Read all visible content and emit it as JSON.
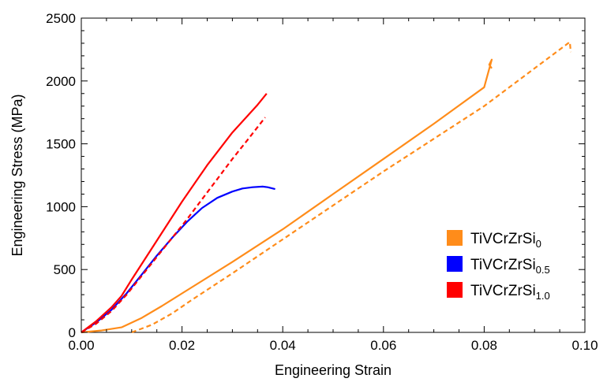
{
  "chart_data": {
    "type": "line",
    "xlabel": "Engineering Strain",
    "ylabel": "Engineering Stress (MPa)",
    "xlim": [
      0,
      0.1
    ],
    "ylim": [
      0,
      2500
    ],
    "xticks": [
      "0.00",
      "0.02",
      "0.04",
      "0.06",
      "0.08",
      "0.10"
    ],
    "yticks": [
      "0",
      "500",
      "1000",
      "1500",
      "2000",
      "2500"
    ],
    "grid": false,
    "legend_position": "bottom-right",
    "legend": [
      {
        "base": "TiVCrZrSi",
        "sub": "0",
        "color": "#FF8C1A"
      },
      {
        "base": "TiVCrZrSi",
        "sub": "0.5",
        "color": "#0000FF"
      },
      {
        "base": "TiVCrZrSi",
        "sub": "1.0",
        "color": "#FF0000"
      }
    ],
    "series": [
      {
        "name": "TiVCrZrSi0",
        "style": "solid",
        "color": "#FF8C1A",
        "x": [
          0,
          0.004,
          0.008,
          0.012,
          0.016,
          0.02,
          0.03,
          0.04,
          0.05,
          0.06,
          0.07,
          0.08,
          0.0815,
          0.081,
          0.0815
        ],
        "y": [
          0,
          15,
          40,
          115,
          210,
          310,
          560,
          820,
          1100,
          1380,
          1660,
          1950,
          2170,
          2130,
          2100
        ]
      },
      {
        "name": "TiVCrZrSi0 (dashed)",
        "style": "dashed",
        "color": "#FF8C1A",
        "x": [
          0.01,
          0.014,
          0.018,
          0.022,
          0.03,
          0.04,
          0.05,
          0.06,
          0.07,
          0.08,
          0.09,
          0.097,
          0.0972
        ],
        "y": [
          0,
          60,
          150,
          260,
          470,
          740,
          1010,
          1280,
          1540,
          1800,
          2100,
          2310,
          2230
        ]
      },
      {
        "name": "TiVCrZrSi0.5",
        "style": "solid",
        "color": "#0000FF",
        "x": [
          0,
          0.003,
          0.006,
          0.009,
          0.012,
          0.015,
          0.018,
          0.021,
          0.024,
          0.027,
          0.03,
          0.032,
          0.034,
          0.036,
          0.037,
          0.0385
        ],
        "y": [
          0,
          80,
          180,
          310,
          460,
          610,
          750,
          880,
          990,
          1070,
          1120,
          1145,
          1155,
          1160,
          1155,
          1140
        ]
      },
      {
        "name": "TiVCrZrSi1.0",
        "style": "solid",
        "color": "#FF0000",
        "x": [
          0,
          0.003,
          0.006,
          0.008,
          0.01,
          0.015,
          0.02,
          0.025,
          0.03,
          0.035,
          0.0368
        ],
        "y": [
          0,
          90,
          200,
          290,
          420,
          730,
          1040,
          1330,
          1590,
          1810,
          1900
        ]
      },
      {
        "name": "TiVCrZrSi1.0 (dashed)",
        "style": "dashed",
        "color": "#FF0000",
        "x": [
          0,
          0.003,
          0.006,
          0.009,
          0.012,
          0.015,
          0.018,
          0.021,
          0.024,
          0.027,
          0.03,
          0.033,
          0.0365
        ],
        "y": [
          0,
          70,
          170,
          300,
          450,
          600,
          750,
          900,
          1060,
          1220,
          1380,
          1530,
          1710
        ]
      }
    ]
  }
}
